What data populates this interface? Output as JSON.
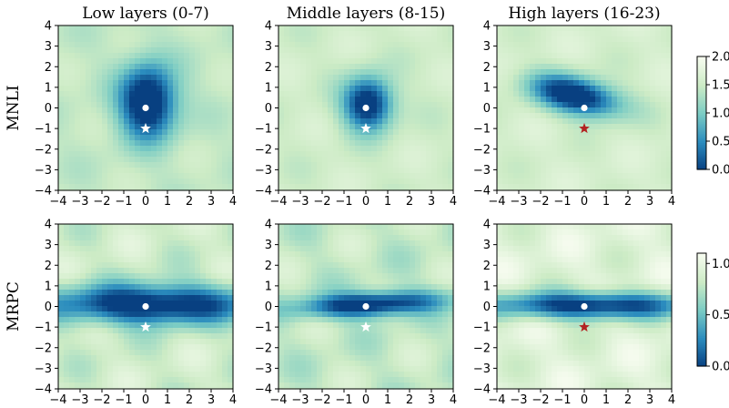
{
  "chart_data": {
    "type": "heatmap",
    "column_titles": [
      "Low layers (0-7)",
      "Middle layers (8-15)",
      "High layers (16-23)"
    ],
    "row_labels": [
      "MNLI",
      "MRPC"
    ],
    "xlim": [
      -4,
      4
    ],
    "ylim": [
      -4,
      4
    ],
    "xticks": [
      "−4",
      "−3",
      "−2",
      "−1",
      "0",
      "1",
      "2",
      "3",
      "4"
    ],
    "yticks": [
      "4",
      "3",
      "2",
      "1",
      "0",
      "−1",
      "−2",
      "−3",
      "−4"
    ],
    "colormap": [
      "#f7fcf0",
      "#ccebc5",
      "#7bccc4",
      "#2b8cbe",
      "#084081"
    ],
    "colorbars": [
      {
        "row": "MNLI",
        "range": [
          0,
          2.0
        ],
        "ticks": [
          "2.0",
          "1.5",
          "1.0",
          "0.5",
          "0.0"
        ],
        "tick_values": [
          2.0,
          1.5,
          1.0,
          0.5,
          0.0
        ]
      },
      {
        "row": "MRPC",
        "range": [
          0,
          1.1
        ],
        "ticks": [
          "1.0",
          "0.5",
          "0.0"
        ],
        "tick_values": [
          1.0,
          0.5,
          0.0
        ]
      }
    ],
    "markers": {
      "origin": {
        "shape": "dot",
        "color": "#ffffff",
        "x": 0,
        "y": 0
      },
      "star_points": [
        {
          "row": "MNLI",
          "column": "Low layers (0-7)",
          "x": 0,
          "y": -1,
          "color": "#ffffff"
        },
        {
          "row": "MNLI",
          "column": "Middle layers (8-15)",
          "x": 0,
          "y": -1,
          "color": "#ffffff"
        },
        {
          "row": "MNLI",
          "column": "High layers (16-23)",
          "x": 0,
          "y": -1,
          "color": "#b22222"
        },
        {
          "row": "MRPC",
          "column": "Low layers (0-7)",
          "x": 0,
          "y": -1,
          "color": "#ffffff"
        },
        {
          "row": "MRPC",
          "column": "Middle layers (8-15)",
          "x": 0,
          "y": -1,
          "color": "#ffffff"
        },
        {
          "row": "MRPC",
          "column": "High layers (16-23)",
          "x": 0,
          "y": -1,
          "color": "#b22222"
        }
      ]
    },
    "panels": [
      {
        "row": "MNLI",
        "column": "Low layers (0-7)",
        "basin": {
          "cx": 0.1,
          "cy": 0.3,
          "sx": 1.6,
          "sy": 2.2,
          "rot": 0,
          "depth": 2.0
        },
        "background": 1.45
      },
      {
        "row": "MNLI",
        "column": "Middle layers (8-15)",
        "basin": {
          "cx": 0.1,
          "cy": 0.2,
          "sx": 1.4,
          "sy": 1.6,
          "rot": 0,
          "depth": 1.9
        },
        "background": 1.55
      },
      {
        "row": "MNLI",
        "column": "High layers (16-23)",
        "basin": {
          "cx": -0.4,
          "cy": 0.6,
          "sx": 2.6,
          "sy": 1.1,
          "rot": -0.25,
          "depth": 2.0
        },
        "background": 1.6
      },
      {
        "row": "MRPC",
        "column": "Low layers (0-7)",
        "basin": {
          "cx": 0.3,
          "cy": 0.1,
          "sx": 6.0,
          "sy": 1.2,
          "rot": 0,
          "depth": 1.05
        },
        "background": 0.85
      },
      {
        "row": "MRPC",
        "column": "Middle layers (8-15)",
        "basin": {
          "cx": 0.2,
          "cy": 0.1,
          "sx": 4.0,
          "sy": 0.75,
          "rot": 0.06,
          "depth": 1.0
        },
        "background": 0.8
      },
      {
        "row": "MRPC",
        "column": "High layers (16-23)",
        "basin": {
          "cx": 0.3,
          "cy": 0.05,
          "sx": 6.0,
          "sy": 0.85,
          "rot": 0,
          "depth": 1.05
        },
        "background": 0.95
      }
    ]
  }
}
